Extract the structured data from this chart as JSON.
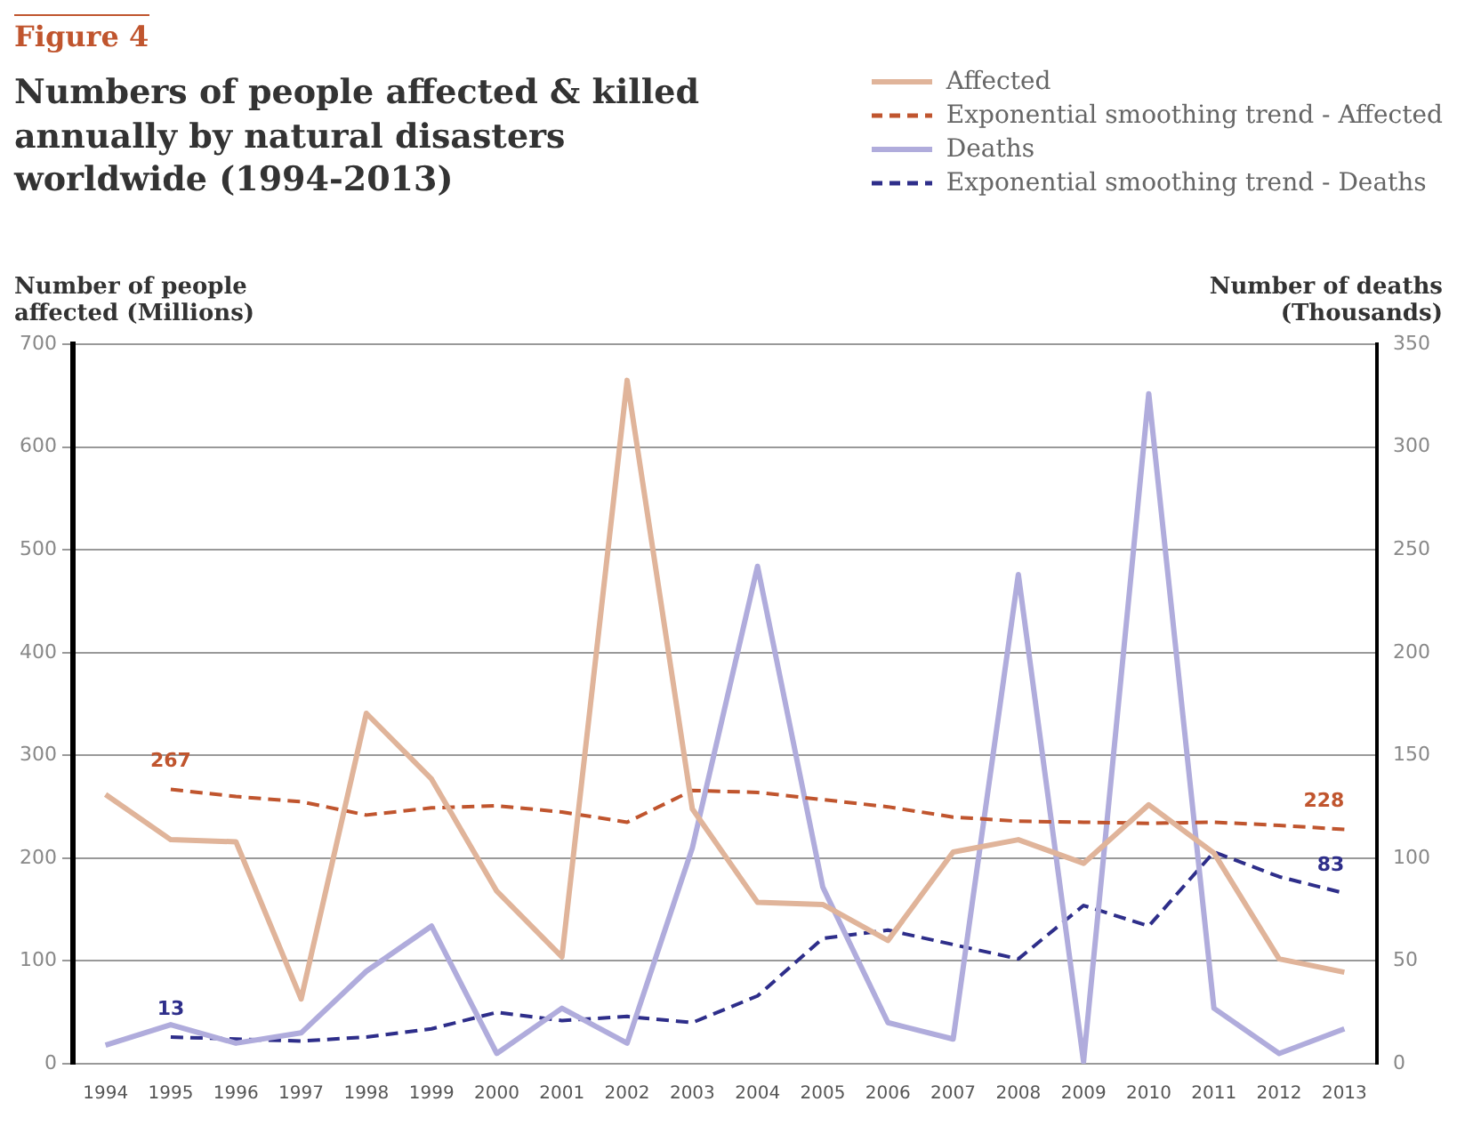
{
  "chart_data": {
    "type": "line",
    "title": "Numbers of people affected & killed annually by natural disasters worldwide (1994-2013)",
    "annotations": [
      "Figure 4"
    ],
    "ylabel": "Number of people affected (Millions)",
    "y2label": "Number of deaths (Thousands)",
    "categories": [
      "1994",
      "1995",
      "1996",
      "1997",
      "1998",
      "1999",
      "2000",
      "2001",
      "2002",
      "2003",
      "2004",
      "2005",
      "2006",
      "2007",
      "2008",
      "2009",
      "2010",
      "2011",
      "2012",
      "2013"
    ],
    "series": [
      {
        "name": "Affected",
        "color": "#e0b49a",
        "line_style": "solid",
        "values": [
          262,
          218,
          216,
          63,
          341,
          277,
          168,
          104,
          665,
          248,
          157,
          155,
          120,
          206,
          218,
          195,
          252,
          205,
          102,
          89
        ]
      },
      {
        "name": "Exponential smoothing trend - Affected",
        "color": "#c0552e",
        "line_style": "dashed",
        "values": [
          null,
          267,
          260,
          255,
          242,
          249,
          251,
          245,
          235,
          266,
          264,
          257,
          250,
          240,
          236,
          235,
          234,
          235,
          232,
          228
        ],
        "value_labels": [
          null,
          "267",
          null,
          null,
          null,
          null,
          null,
          null,
          null,
          null,
          null,
          null,
          null,
          null,
          null,
          null,
          null,
          null,
          null,
          "228"
        ]
      },
      {
        "name": "Deaths",
        "color": "#b0acdc",
        "line_style": "solid",
        "axis": "y2",
        "values": [
          9,
          19,
          10,
          15,
          45,
          67,
          5,
          27,
          10,
          105,
          242,
          86,
          20,
          12,
          238,
          1,
          326,
          27,
          5,
          17
        ]
      },
      {
        "name": "Exponential smoothing trend - Deaths",
        "color": "#2e2e8a",
        "line_style": "dashed",
        "axis": "y2",
        "values": [
          null,
          13,
          12,
          11,
          13,
          17,
          25,
          21,
          23,
          20,
          33,
          61,
          65,
          58,
          51,
          77,
          67,
          103,
          91,
          83
        ],
        "value_labels": [
          null,
          "13",
          null,
          null,
          null,
          null,
          null,
          null,
          null,
          null,
          null,
          null,
          null,
          null,
          null,
          null,
          null,
          null,
          null,
          "83"
        ]
      }
    ],
    "ylim": [
      0,
      700
    ],
    "yticks": [
      0,
      100,
      200,
      300,
      400,
      500,
      600,
      700
    ],
    "y2lim": [
      0,
      350
    ],
    "y2ticks": [
      0,
      50,
      100,
      150,
      200,
      250,
      300,
      350
    ],
    "grid": "y",
    "legend": "top right",
    "marker": "none"
  }
}
